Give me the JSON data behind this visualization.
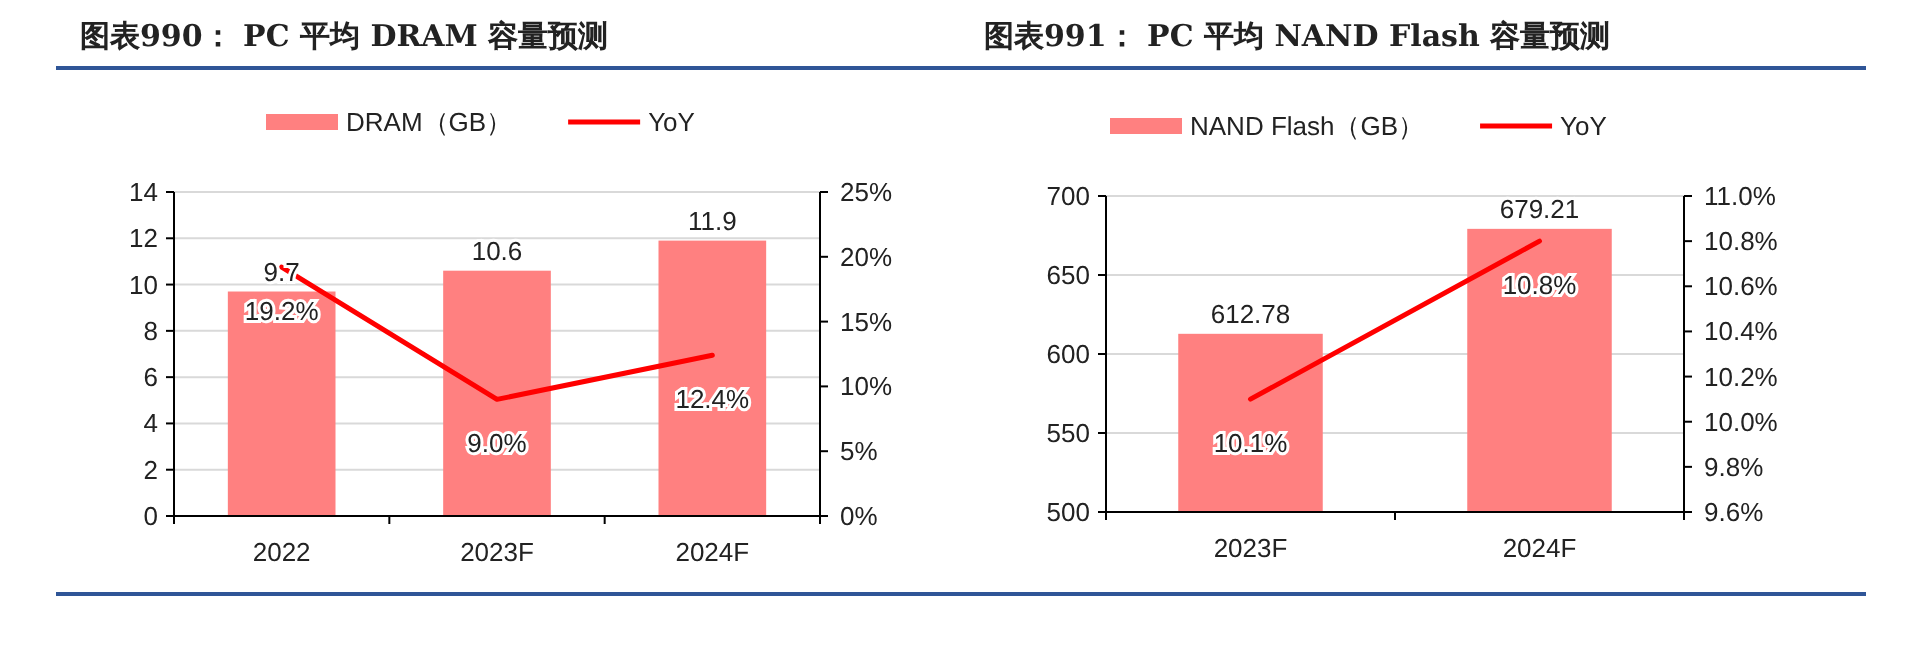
{
  "chart_data": [
    {
      "type": "bar",
      "title": "图表990：  PC 平均 DRAM 容量预测",
      "categories": [
        "2022",
        "2023F",
        "2024F"
      ],
      "series": [
        {
          "name": "DRAM（GB）",
          "color": "#ff8080",
          "values": [
            9.7,
            10.6,
            11.9
          ],
          "value_labels": [
            "9.7",
            "10.6",
            "11.9"
          ]
        },
        {
          "name": "YoY",
          "type": "line",
          "axis": "y2",
          "color": "#ff0000",
          "values": [
            19.2,
            9.0,
            12.4
          ],
          "value_labels": [
            "19.2%",
            "9.0%",
            "12.4%"
          ]
        }
      ],
      "ylim": [
        0,
        14
      ],
      "yticks": [
        0,
        2,
        4,
        6,
        8,
        10,
        12,
        14
      ],
      "y2lim": [
        0,
        25
      ],
      "y2ticks": [
        {
          "value": 0,
          "label": "0%"
        },
        {
          "value": 5,
          "label": "5%"
        },
        {
          "value": 10,
          "label": "10%"
        },
        {
          "value": 15,
          "label": "15%"
        },
        {
          "value": 20,
          "label": "20%"
        },
        {
          "value": 25,
          "label": "25%"
        }
      ],
      "grid": "y",
      "legend": "top"
    },
    {
      "type": "bar",
      "title": "图表991：  PC 平均 NAND Flash 容量预测",
      "categories": [
        "2023F",
        "2024F"
      ],
      "series": [
        {
          "name": "NAND Flash（GB）",
          "color": "#ff8080",
          "values": [
            612.78,
            679.21
          ],
          "value_labels": [
            "612.78",
            "679.21"
          ]
        },
        {
          "name": "YoY",
          "type": "line",
          "axis": "y2",
          "color": "#ff0000",
          "values": [
            10.1,
            10.8
          ],
          "value_labels": [
            "10.1%",
            "10.8%"
          ]
        }
      ],
      "ylim": [
        500,
        700
      ],
      "yticks": [
        500,
        550,
        600,
        650,
        700
      ],
      "y2lim": [
        9.6,
        11.0
      ],
      "y2ticks": [
        {
          "value": 9.6,
          "label": "9.6%"
        },
        {
          "value": 9.8,
          "label": "9.8%"
        },
        {
          "value": 10.0,
          "label": "10.0%"
        },
        {
          "value": 10.2,
          "label": "10.2%"
        },
        {
          "value": 10.4,
          "label": "10.4%"
        },
        {
          "value": 10.6,
          "label": "10.6%"
        },
        {
          "value": 10.8,
          "label": "10.8%"
        },
        {
          "value": 11.0,
          "label": "11.0%"
        }
      ],
      "grid": "y",
      "legend": "top"
    }
  ]
}
